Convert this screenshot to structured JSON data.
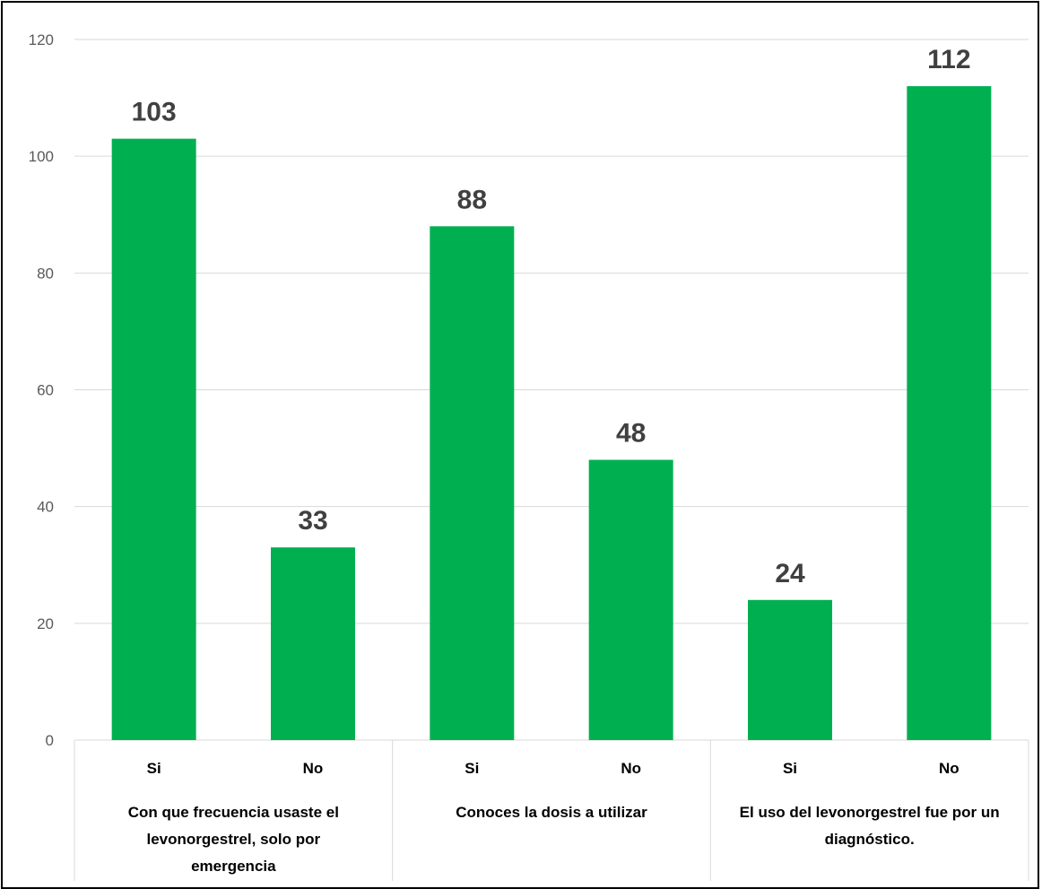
{
  "chart_data": {
    "type": "bar",
    "ylim": [
      0,
      120
    ],
    "yticks": [
      0,
      20,
      40,
      60,
      80,
      100,
      120
    ],
    "grid": true,
    "bar_color": "#00B050",
    "groups": [
      {
        "label_lines": [
          "Con que frecuencia usaste el",
          "levonorgestrel, solo por",
          "emergencia"
        ],
        "categories": [
          "Si",
          "No"
        ],
        "values": [
          103,
          33
        ]
      },
      {
        "label_lines": [
          "Conoces la dosis a utilizar"
        ],
        "categories": [
          "Si",
          "No"
        ],
        "values": [
          88,
          48
        ]
      },
      {
        "label_lines": [
          "El uso del levonorgestrel fue por un",
          "diagnóstico."
        ],
        "categories": [
          "Si",
          "No"
        ],
        "values": [
          24,
          112
        ]
      }
    ]
  }
}
